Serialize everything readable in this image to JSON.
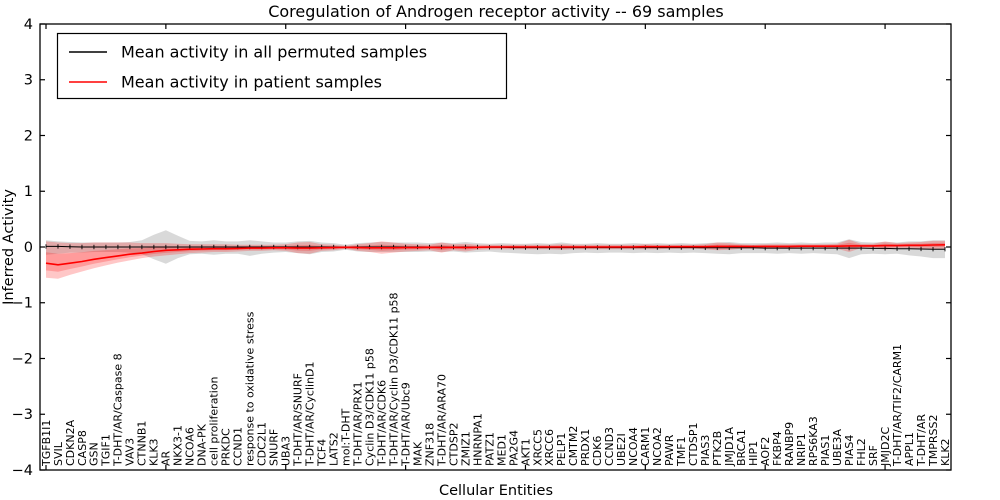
{
  "chart_data": {
    "type": "line",
    "title": "Coregulation of Androgen receptor activity -- 69 samples",
    "xlabel": "Cellular Entities",
    "ylabel": "Inferred Activity",
    "ylim": [
      -4,
      4
    ],
    "yticks": [
      4,
      3,
      2,
      1,
      0,
      -1,
      -2,
      -3,
      -4
    ],
    "grid": false,
    "legend_position": "upper left",
    "legend": [
      {
        "label": "Mean activity in all permuted samples",
        "color": "#000000"
      },
      {
        "label": "Mean activity in patient samples",
        "color": "#ff0000"
      }
    ],
    "categories": [
      "TGFB1I1",
      "SVIL",
      "CDKN2A",
      "CASP8",
      "GSN",
      "TGIF1",
      "T-DHT/AR/Caspase 8",
      "VAV3",
      "CTNNB1",
      "KLK3",
      "AR",
      "NKX3-1",
      "NCOA6",
      "DNA-PK",
      "cell proliferation",
      "PRKDC",
      "CCND1",
      "response to oxidative stress",
      "CDC2L1",
      "SNURF",
      "UBA3",
      "T-DHT/AR/SNURF",
      "T-DHT/AR/CyclinD1",
      "TCF4",
      "LATS2",
      "mol:T-DHT",
      "T-DHT/AR/PRX1",
      "Cyclin D3/CDK11 p58",
      "T-DHT/AR/CDK6",
      "T-DHT/AR/Cyclin D3/CDK11 p58",
      "T-DHT/AR/Ubc9",
      "MAK",
      "ZNF318",
      "T-DHT/AR/ARA70",
      "CTDSP2",
      "ZMIZ1",
      "HNRNPA1",
      "PATZ1",
      "MED1",
      "PA2G4",
      "AKT1",
      "XRCC5",
      "XRCC6",
      "PELP1",
      "CMTM2",
      "PRDX1",
      "CDK6",
      "CCND3",
      "UBE2I",
      "NCOA4",
      "CARM1",
      "NCOA2",
      "PAWR",
      "TMF1",
      "CTDSP1",
      "PIAS3",
      "PTK2B",
      "JMJD1A",
      "BRCA1",
      "HIP1",
      "AOF2",
      "FKBP4",
      "RANBP9",
      "NRIP1",
      "RPS6KA3",
      "PIAS1",
      "UBE3A",
      "PIAS4",
      "FHL2",
      "SRF",
      "JMJD2C",
      "T-DHT/AR/TIF2/CARM1",
      "APPL1",
      "T-DHT/AR",
      "TMPRSS2",
      "KLK2"
    ],
    "series": [
      {
        "name": "Mean activity in all permuted samples",
        "color": "#000000",
        "band_color": "rgba(0,0,0,0.15)",
        "values": [
          0.01,
          0.01,
          0.005,
          0,
          0,
          0,
          0,
          0,
          0,
          0,
          0,
          0,
          0,
          0,
          0,
          0,
          0,
          0,
          0,
          0,
          0,
          0,
          0,
          0,
          0,
          0,
          0,
          0,
          0,
          0,
          0,
          0,
          0,
          0,
          0,
          0,
          0,
          -0.005,
          -0.005,
          -0.01,
          -0.01,
          -0.01,
          -0.01,
          -0.01,
          -0.01,
          -0.01,
          -0.01,
          -0.01,
          -0.01,
          -0.01,
          -0.01,
          -0.01,
          -0.01,
          -0.01,
          -0.01,
          -0.015,
          -0.015,
          -0.015,
          -0.015,
          -0.015,
          -0.02,
          -0.02,
          -0.02,
          -0.02,
          -0.02,
          -0.02,
          -0.02,
          -0.02,
          -0.02,
          -0.025,
          -0.025,
          -0.03,
          -0.03,
          -0.035,
          -0.04,
          -0.04
        ],
        "band_upper": [
          0.12,
          0.1,
          0.09,
          0.08,
          0.08,
          0.08,
          0.08,
          0.09,
          0.12,
          0.22,
          0.3,
          0.2,
          0.11,
          0.1,
          0.12,
          0.1,
          0.1,
          0.12,
          0.1,
          0.08,
          0.08,
          0.1,
          0.11,
          0.08,
          0.07,
          0.04,
          0.07,
          0.08,
          0.09,
          0.08,
          0.08,
          0.08,
          0.07,
          0.08,
          0.07,
          0.09,
          0.07,
          0.06,
          0.07,
          0.06,
          0.06,
          0.07,
          0.06,
          0.08,
          0.06,
          0.06,
          0.07,
          0.06,
          0.06,
          0.07,
          0.06,
          0.07,
          0.06,
          0.07,
          0.06,
          0.07,
          0.08,
          0.09,
          0.07,
          0.07,
          0.07,
          0.08,
          0.07,
          0.08,
          0.07,
          0.08,
          0.08,
          0.14,
          0.09,
          0.08,
          0.09,
          0.08,
          0.1,
          0.1,
          0.12,
          0.12
        ],
        "band_lower": [
          -0.14,
          -0.12,
          -0.1,
          -0.1,
          -0.09,
          -0.09,
          -0.09,
          -0.1,
          -0.13,
          -0.22,
          -0.3,
          -0.2,
          -0.13,
          -0.12,
          -0.14,
          -0.12,
          -0.12,
          -0.16,
          -0.12,
          -0.1,
          -0.09,
          -0.11,
          -0.13,
          -0.09,
          -0.08,
          -0.05,
          -0.08,
          -0.09,
          -0.09,
          -0.09,
          -0.09,
          -0.09,
          -0.08,
          -0.09,
          -0.08,
          -0.1,
          -0.09,
          -0.08,
          -0.1,
          -0.11,
          -0.12,
          -0.13,
          -0.12,
          -0.13,
          -0.11,
          -0.1,
          -0.11,
          -0.1,
          -0.1,
          -0.11,
          -0.1,
          -0.11,
          -0.1,
          -0.11,
          -0.1,
          -0.11,
          -0.12,
          -0.13,
          -0.11,
          -0.11,
          -0.11,
          -0.12,
          -0.11,
          -0.12,
          -0.11,
          -0.12,
          -0.13,
          -0.2,
          -0.13,
          -0.12,
          -0.13,
          -0.12,
          -0.15,
          -0.17,
          -0.2,
          -0.2
        ]
      },
      {
        "name": "Mean activity in patient samples",
        "color": "#ff0000",
        "band_color": "rgba(255,0,0,0.22)",
        "values": [
          -0.29,
          -0.32,
          -0.29,
          -0.26,
          -0.22,
          -0.19,
          -0.16,
          -0.13,
          -0.11,
          -0.08,
          -0.06,
          -0.05,
          -0.04,
          -0.035,
          -0.03,
          -0.03,
          -0.025,
          -0.02,
          -0.02,
          -0.015,
          -0.015,
          -0.02,
          -0.02,
          -0.015,
          -0.01,
          -0.005,
          -0.01,
          -0.015,
          -0.015,
          -0.015,
          -0.01,
          -0.01,
          -0.005,
          -0.01,
          -0.005,
          -0.01,
          -0.005,
          0,
          0,
          0,
          0,
          0,
          0,
          0,
          0,
          0,
          0,
          0,
          0,
          0,
          0.005,
          0.005,
          0.005,
          0.005,
          0.005,
          0.005,
          0.01,
          0.01,
          0.01,
          0.01,
          0.01,
          0.01,
          0.01,
          0.015,
          0.015,
          0.015,
          0.015,
          0.02,
          0.02,
          0.02,
          0.025,
          0.025,
          0.03,
          0.03,
          0.035,
          0.04
        ],
        "band_upper": [
          0.1,
          0.08,
          0.07,
          0.07,
          0.08,
          0.08,
          0.08,
          0.08,
          0.07,
          0.07,
          0.07,
          0.06,
          0.05,
          0.05,
          0.05,
          0.05,
          0.04,
          0.04,
          0.04,
          0.04,
          0.05,
          0.08,
          0.09,
          0.05,
          0.04,
          0.02,
          0.05,
          0.07,
          0.1,
          0.08,
          0.06,
          0.05,
          0.04,
          0.08,
          0.05,
          0.06,
          0.04,
          0.04,
          0.04,
          0.04,
          0.04,
          0.04,
          0.04,
          0.05,
          0.04,
          0.04,
          0.04,
          0.04,
          0.04,
          0.04,
          0.05,
          0.04,
          0.04,
          0.04,
          0.04,
          0.05,
          0.08,
          0.07,
          0.05,
          0.04,
          0.05,
          0.05,
          0.05,
          0.05,
          0.05,
          0.05,
          0.06,
          0.13,
          0.06,
          0.06,
          0.1,
          0.07,
          0.08,
          0.09,
          0.11,
          0.11
        ],
        "band_lower": [
          -0.55,
          -0.57,
          -0.5,
          -0.44,
          -0.38,
          -0.33,
          -0.28,
          -0.24,
          -0.2,
          -0.17,
          -0.15,
          -0.13,
          -0.11,
          -0.1,
          -0.09,
          -0.09,
          -0.08,
          -0.07,
          -0.07,
          -0.06,
          -0.07,
          -0.11,
          -0.12,
          -0.07,
          -0.06,
          -0.03,
          -0.07,
          -0.09,
          -0.12,
          -0.1,
          -0.08,
          -0.07,
          -0.06,
          -0.1,
          -0.06,
          -0.08,
          -0.05,
          -0.04,
          -0.04,
          -0.04,
          -0.04,
          -0.04,
          -0.04,
          -0.05,
          -0.04,
          -0.04,
          -0.04,
          -0.04,
          -0.04,
          -0.04,
          -0.04,
          -0.04,
          -0.03,
          -0.03,
          -0.03,
          -0.04,
          -0.06,
          -0.05,
          -0.03,
          -0.03,
          -0.03,
          -0.03,
          -0.03,
          -0.03,
          -0.02,
          -0.03,
          -0.03,
          -0.09,
          -0.02,
          -0.02,
          -0.05,
          -0.02,
          -0.02,
          -0.03,
          -0.04,
          -0.03
        ]
      }
    ]
  }
}
